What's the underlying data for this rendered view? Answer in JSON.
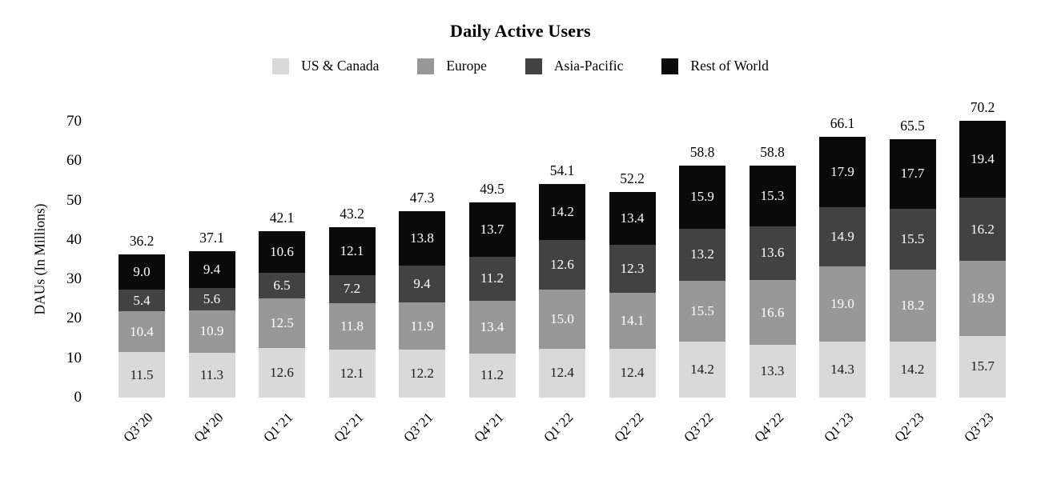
{
  "chart_data": {
    "type": "bar",
    "variant": "stacked-vertical",
    "title": "Daily Active Users",
    "ylabel": "DAUs (In Millions)",
    "xlabel": "",
    "ylim": [
      0,
      70
    ],
    "yticks": [
      0,
      10,
      20,
      30,
      40,
      50,
      60,
      70
    ],
    "grid": false,
    "legend_position": "top-center",
    "categories": [
      "Q3’20",
      "Q4’20",
      "Q1’21",
      "Q2’21",
      "Q3’21",
      "Q4’21",
      "Q1’22",
      "Q2’22",
      "Q3’22",
      "Q4’22",
      "Q1’23",
      "Q2’23",
      "Q3’23"
    ],
    "series": [
      {
        "name": "US & Canada",
        "color": "#d9d9d9",
        "label_color": "#1a1a1a",
        "values": [
          11.5,
          11.3,
          12.6,
          12.1,
          12.2,
          11.2,
          12.4,
          12.4,
          14.2,
          13.3,
          14.3,
          14.2,
          15.7
        ]
      },
      {
        "name": "Europe",
        "color": "#989898",
        "label_color": "#ffffff",
        "values": [
          10.4,
          10.9,
          12.5,
          11.8,
          11.9,
          13.4,
          15.0,
          14.1,
          15.5,
          16.6,
          19.0,
          18.2,
          18.9
        ]
      },
      {
        "name": "Asia-Pacific",
        "color": "#424242",
        "label_color": "#ffffff",
        "values": [
          5.4,
          5.6,
          6.5,
          7.2,
          9.4,
          11.2,
          12.6,
          12.3,
          13.2,
          13.6,
          14.9,
          15.5,
          16.2
        ]
      },
      {
        "name": "Rest of World",
        "color": "#0a0a0a",
        "label_color": "#ffffff",
        "values": [
          9.0,
          9.4,
          10.6,
          12.1,
          13.8,
          13.7,
          14.2,
          13.4,
          15.9,
          15.3,
          17.9,
          17.7,
          19.4
        ]
      }
    ],
    "totals": [
      36.2,
      37.1,
      42.1,
      43.2,
      47.3,
      49.5,
      54.1,
      52.2,
      58.8,
      58.8,
      66.1,
      65.5,
      70.2
    ]
  }
}
